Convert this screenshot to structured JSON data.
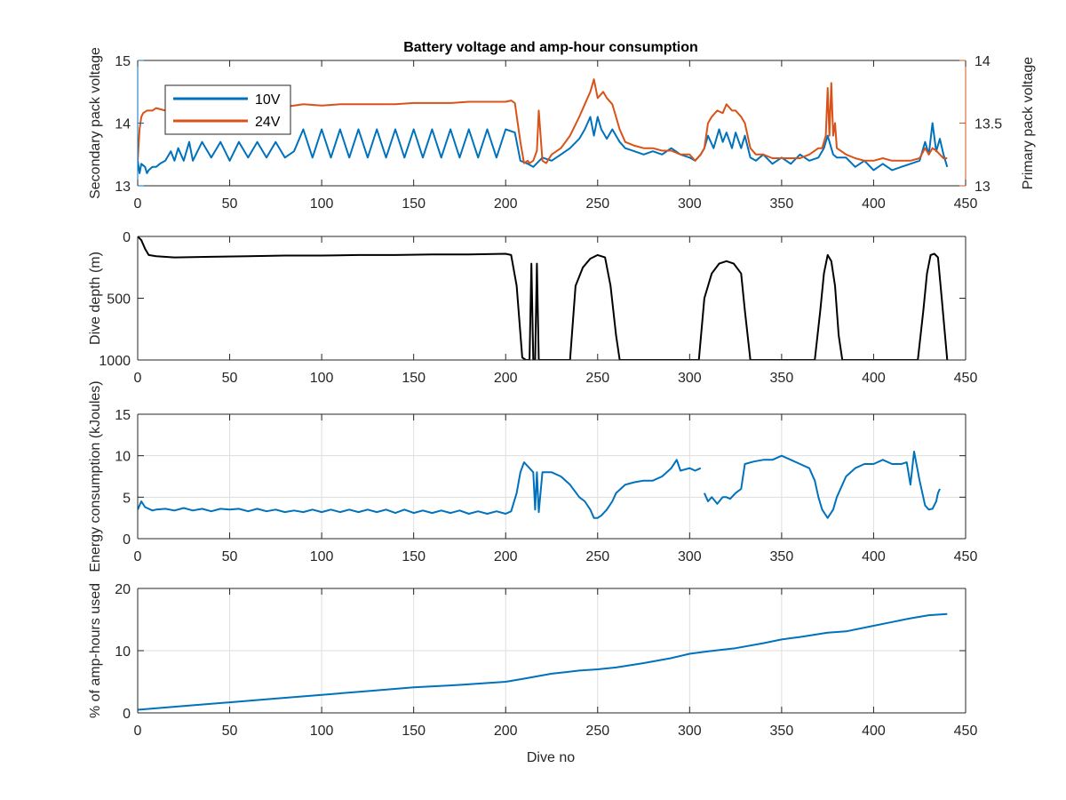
{
  "colors": {
    "blue": "#0072BD",
    "orange": "#D95319",
    "black": "#000000",
    "axis": "#262626",
    "grid": "#dedede"
  },
  "chart_data": [
    {
      "id": "voltage",
      "type": "line",
      "title": "Battery voltage and amp-hour consumption",
      "xlabel": "",
      "ylabel": "Secondary pack voltage",
      "ylabel_right": "Primary pack voltage",
      "xlim": [
        0,
        450
      ],
      "ylim": [
        13,
        15
      ],
      "ylim_right": [
        13,
        14
      ],
      "xticks": [
        0,
        50,
        100,
        150,
        200,
        250,
        300,
        350,
        400,
        450
      ],
      "yticks": [
        13,
        14,
        15
      ],
      "yticks_right": [
        13,
        13.5,
        14
      ],
      "ytick_labels_right": [
        "13",
        "13.5",
        "14"
      ],
      "grid": false,
      "legend": "top-left",
      "series": [
        {
          "name": "10V",
          "axis": "left",
          "color": "#0072BD",
          "x": [
            0,
            1,
            2,
            4,
            5,
            6,
            8,
            10,
            12,
            15,
            18,
            20,
            22,
            25,
            28,
            30,
            35,
            40,
            45,
            50,
            55,
            60,
            65,
            70,
            75,
            80,
            85,
            90,
            95,
            100,
            105,
            110,
            115,
            120,
            125,
            130,
            135,
            140,
            145,
            150,
            155,
            160,
            165,
            170,
            175,
            180,
            185,
            190,
            195,
            200,
            205,
            208,
            212,
            215,
            220,
            225,
            230,
            235,
            240,
            243,
            246,
            248,
            250,
            252,
            255,
            258,
            262,
            265,
            270,
            275,
            280,
            285,
            290,
            295,
            300,
            303,
            306,
            308,
            310,
            313,
            316,
            318,
            320,
            323,
            325,
            328,
            330,
            333,
            336,
            340,
            345,
            350,
            355,
            360,
            365,
            370,
            373,
            375,
            378,
            380,
            385,
            390,
            395,
            400,
            405,
            410,
            415,
            420,
            425,
            428,
            430,
            432,
            434,
            436,
            438,
            440
          ],
          "y": [
            13.4,
            13.2,
            13.35,
            13.3,
            13.2,
            13.25,
            13.3,
            13.3,
            13.35,
            13.4,
            13.55,
            13.4,
            13.6,
            13.4,
            13.7,
            13.4,
            13.7,
            13.45,
            13.7,
            13.4,
            13.7,
            13.45,
            13.7,
            13.45,
            13.7,
            13.45,
            13.55,
            13.9,
            13.45,
            13.9,
            13.45,
            13.9,
            13.45,
            13.9,
            13.45,
            13.9,
            13.45,
            13.9,
            13.45,
            13.9,
            13.45,
            13.9,
            13.45,
            13.9,
            13.45,
            13.9,
            13.45,
            13.9,
            13.45,
            13.9,
            13.85,
            13.4,
            13.35,
            13.3,
            13.45,
            13.4,
            13.5,
            13.6,
            13.75,
            13.9,
            14.1,
            13.8,
            14.1,
            13.9,
            13.75,
            13.9,
            13.7,
            13.6,
            13.55,
            13.5,
            13.55,
            13.5,
            13.6,
            13.5,
            13.45,
            13.4,
            13.5,
            13.6,
            13.8,
            13.6,
            13.9,
            13.7,
            13.85,
            13.6,
            13.85,
            13.6,
            13.8,
            13.45,
            13.4,
            13.5,
            13.35,
            13.45,
            13.35,
            13.5,
            13.4,
            13.45,
            13.6,
            13.8,
            13.5,
            13.45,
            13.45,
            13.3,
            13.4,
            13.25,
            13.35,
            13.25,
            13.3,
            13.35,
            13.4,
            13.7,
            13.5,
            14.0,
            13.55,
            13.75,
            13.5,
            13.3
          ]
        },
        {
          "name": "24V",
          "axis": "right",
          "color": "#D95319",
          "x": [
            0,
            1,
            2,
            3,
            5,
            8,
            10,
            15,
            20,
            30,
            40,
            50,
            60,
            70,
            80,
            90,
            100,
            110,
            120,
            130,
            140,
            150,
            160,
            170,
            180,
            190,
            200,
            203,
            205,
            208,
            210,
            212,
            213,
            215,
            217,
            218,
            220,
            222,
            225,
            230,
            235,
            240,
            243,
            246,
            248,
            250,
            253,
            255,
            258,
            262,
            265,
            270,
            275,
            280,
            285,
            290,
            295,
            300,
            303,
            306,
            308,
            310,
            312,
            315,
            318,
            320,
            323,
            325,
            328,
            330,
            333,
            336,
            340,
            345,
            350,
            355,
            360,
            365,
            370,
            372,
            374,
            375,
            376,
            377,
            378,
            379,
            380,
            382,
            385,
            390,
            395,
            400,
            405,
            410,
            415,
            420,
            425,
            428,
            430,
            432,
            434,
            436,
            438,
            440
          ],
          "y": [
            13.2,
            13.45,
            13.55,
            13.58,
            13.6,
            13.6,
            13.62,
            13.6,
            13.62,
            13.6,
            13.62,
            13.64,
            13.63,
            13.64,
            13.63,
            13.65,
            13.64,
            13.65,
            13.65,
            13.65,
            13.65,
            13.66,
            13.66,
            13.66,
            13.67,
            13.67,
            13.67,
            13.68,
            13.66,
            13.35,
            13.18,
            13.2,
            13.18,
            13.2,
            13.28,
            13.6,
            13.2,
            13.18,
            13.25,
            13.3,
            13.4,
            13.55,
            13.65,
            13.75,
            13.85,
            13.7,
            13.75,
            13.7,
            13.65,
            13.45,
            13.35,
            13.32,
            13.3,
            13.3,
            13.28,
            13.28,
            13.25,
            13.25,
            13.2,
            13.25,
            13.3,
            13.5,
            13.55,
            13.6,
            13.58,
            13.65,
            13.6,
            13.6,
            13.55,
            13.5,
            13.3,
            13.25,
            13.25,
            13.22,
            13.22,
            13.22,
            13.22,
            13.25,
            13.3,
            13.3,
            13.4,
            13.78,
            13.4,
            13.82,
            13.4,
            13.5,
            13.3,
            13.28,
            13.25,
            13.22,
            13.2,
            13.2,
            13.22,
            13.2,
            13.2,
            13.2,
            13.22,
            13.3,
            13.25,
            13.3,
            13.28,
            13.25,
            13.22,
            13.22
          ]
        }
      ]
    },
    {
      "id": "depth",
      "type": "line",
      "title": "",
      "xlabel": "",
      "ylabel": "Dive depth (m)",
      "xlim": [
        0,
        450
      ],
      "ylim": [
        0,
        1000
      ],
      "y_reversed": true,
      "xticks": [
        0,
        50,
        100,
        150,
        200,
        250,
        300,
        350,
        400,
        450
      ],
      "yticks": [
        0,
        500,
        1000
      ],
      "grid": false,
      "series": [
        {
          "color": "#000000",
          "x": [
            0,
            2,
            4,
            6,
            10,
            20,
            40,
            60,
            80,
            100,
            120,
            140,
            160,
            180,
            200,
            203,
            206,
            209,
            211,
            213,
            214,
            215,
            216,
            217,
            218,
            220,
            235,
            238,
            242,
            246,
            250,
            254,
            257,
            260,
            262,
            305,
            308,
            312,
            316,
            320,
            324,
            328,
            330,
            333,
            368,
            371,
            373,
            375,
            377,
            379,
            381,
            383,
            424,
            427,
            429,
            431,
            433,
            435,
            437,
            440
          ],
          "y": [
            0,
            30,
            100,
            150,
            160,
            170,
            165,
            160,
            155,
            155,
            150,
            150,
            145,
            145,
            140,
            150,
            400,
            980,
            1000,
            1000,
            220,
            1000,
            1000,
            220,
            1000,
            1000,
            1000,
            400,
            250,
            180,
            150,
            170,
            400,
            800,
            1000,
            1000,
            500,
            300,
            220,
            200,
            220,
            300,
            600,
            1000,
            1000,
            600,
            300,
            150,
            200,
            400,
            800,
            1000,
            1000,
            600,
            300,
            150,
            140,
            170,
            500,
            1000
          ]
        }
      ]
    },
    {
      "id": "energy",
      "type": "line",
      "title": "",
      "xlabel": "",
      "ylabel": "Energy consumption (kJoules)",
      "xlim": [
        0,
        450
      ],
      "ylim": [
        0,
        15
      ],
      "xticks": [
        0,
        50,
        100,
        150,
        200,
        250,
        300,
        350,
        400,
        450
      ],
      "yticks": [
        0,
        5,
        10,
        15
      ],
      "grid": true,
      "series": [
        {
          "color": "#0072BD",
          "segments": [
            {
              "x": [
                0,
                2,
                4,
                6,
                8,
                10,
                15,
                20,
                25,
                30,
                35,
                40,
                45,
                50,
                55,
                60,
                65,
                70,
                75,
                80,
                85,
                90,
                95,
                100,
                105,
                110,
                115,
                120,
                125,
                130,
                135,
                140,
                145,
                150,
                155,
                160,
                165,
                170,
                175,
                180,
                185,
                190,
                195,
                200,
                203,
                206,
                208,
                210,
                213,
                215,
                216,
                217,
                218,
                220,
                225,
                230,
                235,
                240,
                243,
                246,
                248,
                250,
                252,
                255,
                258,
                260,
                265,
                270,
                275,
                280,
                285,
                290,
                293,
                295,
                300,
                303,
                306
              ],
              "y": [
                3.5,
                4.5,
                3.8,
                3.6,
                3.4,
                3.5,
                3.6,
                3.4,
                3.7,
                3.4,
                3.6,
                3.3,
                3.6,
                3.5,
                3.6,
                3.3,
                3.6,
                3.3,
                3.5,
                3.2,
                3.4,
                3.2,
                3.5,
                3.2,
                3.5,
                3.2,
                3.5,
                3.2,
                3.5,
                3.2,
                3.5,
                3.1,
                3.5,
                3.1,
                3.4,
                3.1,
                3.4,
                3.1,
                3.4,
                3.0,
                3.3,
                3.0,
                3.3,
                3.0,
                3.3,
                5.5,
                8.0,
                9.2,
                8.5,
                8.0,
                3.5,
                8.0,
                3.2,
                8.0,
                8.0,
                7.5,
                6.5,
                5.0,
                4.5,
                3.5,
                2.5,
                2.5,
                2.8,
                3.5,
                4.5,
                5.5,
                6.5,
                6.8,
                7.0,
                7.0,
                7.5,
                8.5,
                9.5,
                8.2,
                8.5,
                8.2,
                8.5
              ]
            },
            {
              "x": [
                308,
                310,
                312,
                315,
                318,
                320,
                322,
                325,
                328,
                330,
                335,
                340,
                345,
                350,
                355,
                360,
                365,
                368,
                370,
                372,
                375,
                378,
                380,
                385,
                390,
                395,
                400,
                405,
                410,
                415,
                418,
                420,
                422,
                425,
                428,
                430,
                432,
                434,
                435,
                436
              ],
              "y": [
                5.5,
                4.5,
                5.0,
                4.2,
                5.0,
                5.0,
                4.8,
                5.5,
                6.0,
                9.0,
                9.3,
                9.5,
                9.5,
                10.0,
                9.5,
                9.0,
                8.5,
                7.0,
                5.0,
                3.5,
                2.5,
                3.5,
                5.0,
                7.5,
                8.5,
                9.0,
                9.0,
                9.5,
                9.0,
                9.0,
                9.2,
                6.5,
                10.5,
                7.0,
                4.0,
                3.5,
                3.6,
                4.5,
                5.5,
                6.0
              ]
            }
          ]
        }
      ]
    },
    {
      "id": "amphours",
      "type": "line",
      "title": "",
      "xlabel": "Dive no",
      "ylabel": "% of amp-hours used",
      "xlim": [
        0,
        450
      ],
      "ylim": [
        0,
        20
      ],
      "xticks": [
        0,
        50,
        100,
        150,
        200,
        250,
        300,
        350,
        400,
        450
      ],
      "yticks": [
        0,
        10,
        20
      ],
      "grid": true,
      "series": [
        {
          "color": "#0072BD",
          "x": [
            0,
            25,
            50,
            75,
            100,
            125,
            150,
            175,
            200,
            210,
            225,
            240,
            250,
            260,
            275,
            290,
            300,
            310,
            325,
            340,
            350,
            360,
            375,
            385,
            400,
            410,
            420,
            430,
            440
          ],
          "y": [
            0.5,
            1.1,
            1.7,
            2.3,
            2.9,
            3.5,
            4.1,
            4.5,
            5.0,
            5.5,
            6.3,
            6.8,
            7.0,
            7.3,
            8.0,
            8.8,
            9.5,
            9.9,
            10.4,
            11.2,
            11.8,
            12.2,
            12.9,
            13.1,
            14.0,
            14.6,
            15.2,
            15.7,
            15.9
          ]
        }
      ]
    }
  ]
}
